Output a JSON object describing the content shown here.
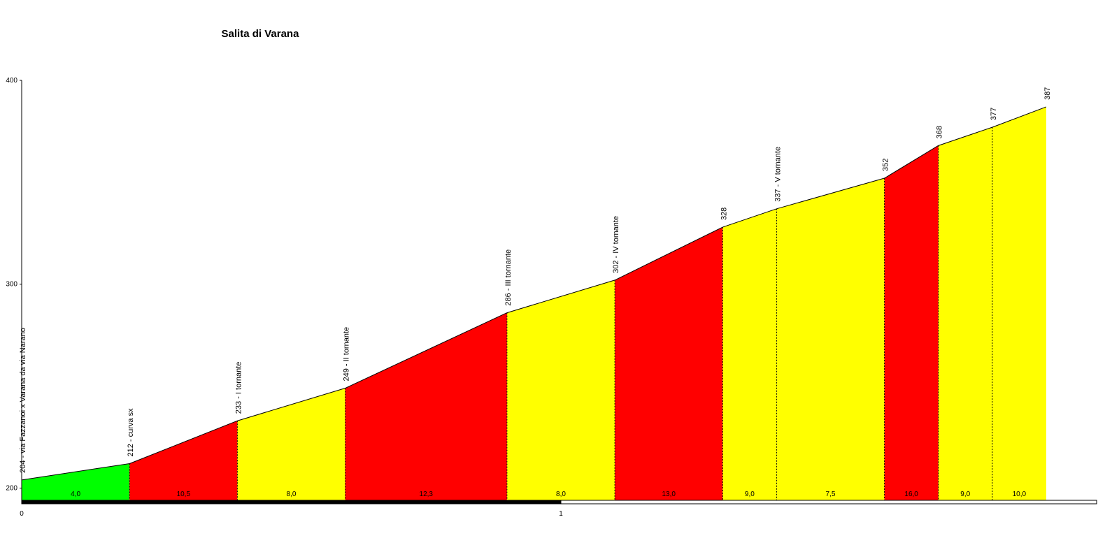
{
  "chart_data": {
    "type": "elevation-profile",
    "title": "Salita di Varana",
    "x": [
      0,
      0.2,
      0.4,
      0.6,
      0.9,
      1.1,
      1.3,
      1.4,
      1.6,
      1.7,
      1.8,
      1.9
    ],
    "elevation": [
      204,
      212,
      233,
      249,
      286,
      302,
      328,
      337,
      352,
      368,
      377,
      387
    ],
    "point_labels": [
      "204 - via Fazzanoi x Varana da via Narano",
      "212 - curva sx",
      "233 - I tornante",
      "249 - II tornante",
      "286 - III tornante",
      "302 - IV tornante",
      "328",
      "337 - V tornante",
      "352",
      "368",
      "377",
      "387"
    ],
    "gradients": [
      4.0,
      10.5,
      8.0,
      12.3,
      8.0,
      13.0,
      9.0,
      7.5,
      16.0,
      9.0,
      10.0
    ],
    "gradient_labels": [
      "4,0",
      "10,5",
      "8,0",
      "12,3",
      "8,0",
      "13,0",
      "9,0",
      "7,5",
      "16,0",
      "9,0",
      "10,0"
    ],
    "segment_colors": [
      "#00ff00",
      "#ff0000",
      "#ffff00",
      "#ff0000",
      "#ffff00",
      "#ff0000",
      "#ffff00",
      "#ffff00",
      "#ff0000",
      "#ffff00",
      "#ffff00"
    ],
    "xlim": [
      0,
      2
    ],
    "xticks": [
      0,
      1
    ],
    "ylim": [
      194,
      400
    ],
    "yticks": [
      200,
      300,
      400
    ]
  }
}
